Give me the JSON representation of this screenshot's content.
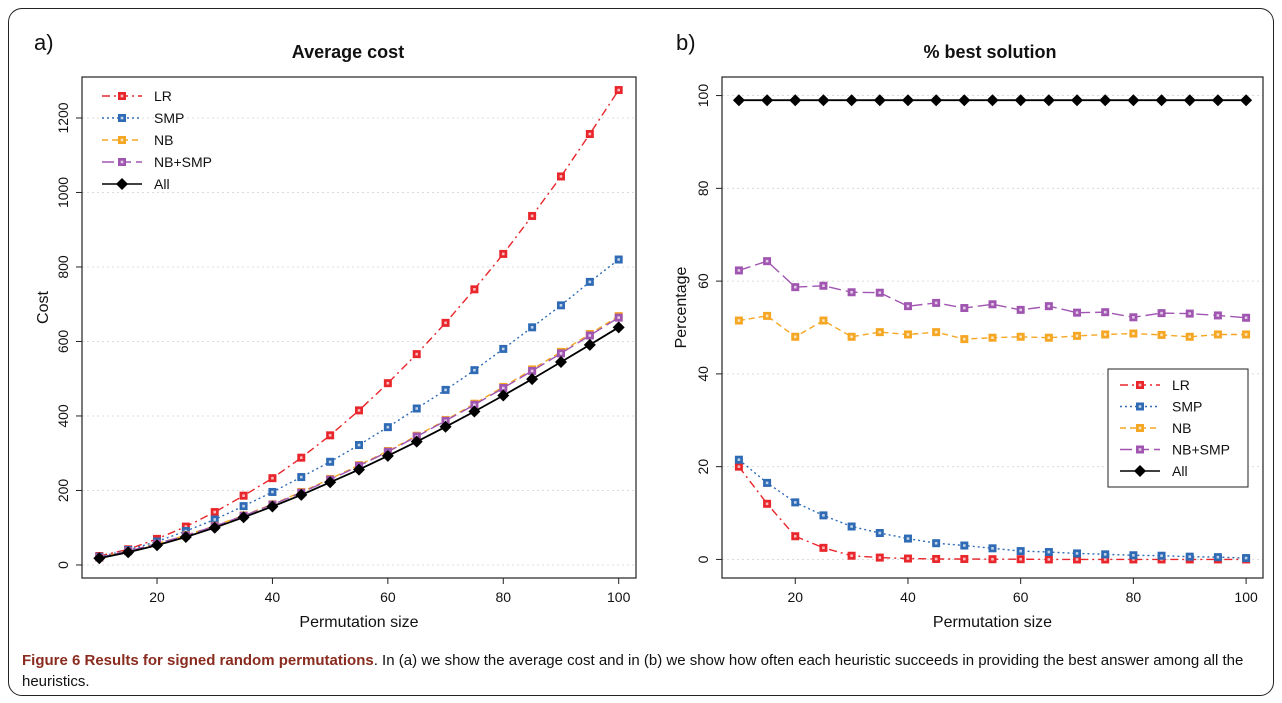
{
  "chart_data": [
    {
      "type": "line",
      "panel_label": "a)",
      "title": "Average cost",
      "xlabel": "Permutation size",
      "ylabel": "Cost",
      "xlim": [
        7,
        103
      ],
      "ylim": [
        -35,
        1310
      ],
      "x_ticks": [
        20,
        40,
        60,
        80,
        100
      ],
      "y_ticks": [
        0,
        200,
        400,
        600,
        800,
        1000,
        1200
      ],
      "grid": "horizontal",
      "legend_position": "top-left",
      "x": [
        10,
        15,
        20,
        25,
        30,
        35,
        40,
        45,
        50,
        55,
        60,
        65,
        70,
        75,
        80,
        85,
        90,
        95,
        100
      ],
      "series": [
        {
          "name": "LR",
          "color": "#e8262b",
          "marker": "square",
          "dash": "8,4,2,4",
          "values": [
            24,
            42,
            70,
            103,
            142,
            186,
            233,
            288,
            348,
            415,
            488,
            566,
            650,
            740,
            835,
            937,
            1043,
            1157,
            1275
          ]
        },
        {
          "name": "SMP",
          "color": "#2f6bb5",
          "marker": "square",
          "dash": "2,3",
          "values": [
            22,
            40,
            63,
            91,
            122,
            158,
            196,
            236,
            277,
            322,
            370,
            420,
            470,
            523,
            580,
            638,
            697,
            760,
            820
          ]
        },
        {
          "name": "NB",
          "color": "#f5a623",
          "marker": "square",
          "dash": "6,4",
          "values": [
            20,
            37,
            57,
            80,
            105,
            133,
            163,
            196,
            231,
            268,
            306,
            347,
            389,
            433,
            478,
            525,
            572,
            620,
            668
          ]
        },
        {
          "name": "NB+SMP",
          "color": "#a055b0",
          "marker": "square",
          "dash": "12,5",
          "values": [
            20,
            37,
            57,
            79,
            104,
            132,
            162,
            194,
            229,
            266,
            304,
            345,
            387,
            430,
            475,
            521,
            568,
            616,
            664
          ]
        },
        {
          "name": "All",
          "color": "#000000",
          "marker": "diamond",
          "dash": "",
          "values": [
            18,
            34,
            53,
            75,
            100,
            128,
            157,
            188,
            222,
            256,
            293,
            331,
            371,
            412,
            455,
            499,
            545,
            591,
            638
          ]
        }
      ]
    },
    {
      "type": "line",
      "panel_label": "b)",
      "title": "% best solution",
      "xlabel": "Permutation size",
      "ylabel": "Percentage",
      "xlim": [
        7,
        103
      ],
      "ylim": [
        -4,
        104
      ],
      "x_ticks": [
        20,
        40,
        60,
        80,
        100
      ],
      "y_ticks": [
        0,
        20,
        40,
        60,
        80,
        100
      ],
      "grid": "horizontal",
      "legend_position": "middle-right",
      "x": [
        10,
        15,
        20,
        25,
        30,
        35,
        40,
        45,
        50,
        55,
        60,
        65,
        70,
        75,
        80,
        85,
        90,
        95,
        100
      ],
      "series": [
        {
          "name": "LR",
          "color": "#e8262b",
          "marker": "square",
          "dash": "8,4,2,4",
          "values": [
            20,
            12,
            5,
            2.5,
            0.8,
            0.4,
            0.2,
            0.1,
            0.1,
            0.05,
            0.05,
            0,
            0,
            0,
            0,
            0,
            0,
            0,
            0
          ]
        },
        {
          "name": "SMP",
          "color": "#2f6bb5",
          "marker": "square",
          "dash": "2,3",
          "values": [
            21.5,
            16.5,
            12.3,
            9.5,
            7.1,
            5.7,
            4.5,
            3.5,
            3.0,
            2.4,
            1.8,
            1.6,
            1.3,
            1.1,
            0.9,
            0.8,
            0.6,
            0.5,
            0.3
          ]
        },
        {
          "name": "NB",
          "color": "#f5a623",
          "marker": "square",
          "dash": "6,4",
          "values": [
            51.5,
            52.5,
            48,
            51.5,
            48,
            49,
            48.5,
            49,
            47.5,
            47.8,
            48,
            47.8,
            48.2,
            48.5,
            48.7,
            48.4,
            48,
            48.5,
            48.5
          ]
        },
        {
          "name": "NB+SMP",
          "color": "#a055b0",
          "marker": "square",
          "dash": "12,5",
          "values": [
            62.3,
            64.3,
            58.7,
            59,
            57.6,
            57.5,
            54.6,
            55.3,
            54.2,
            55,
            53.8,
            54.6,
            53.2,
            53.3,
            52.2,
            53.1,
            53,
            52.6,
            52.1
          ]
        },
        {
          "name": "All",
          "color": "#000000",
          "marker": "diamond",
          "dash": "",
          "values": [
            99,
            99,
            99,
            99,
            99,
            99,
            99,
            99,
            99,
            99,
            99,
            99,
            99,
            99,
            99,
            99,
            99,
            99,
            99
          ]
        }
      ]
    }
  ],
  "caption": {
    "lead": "Figure 6 Results for signed random permutations",
    "body": ". In (a) we show the average cost and in (b) we show how often each heuristic succeeds in providing the best answer among all the heuristics."
  }
}
